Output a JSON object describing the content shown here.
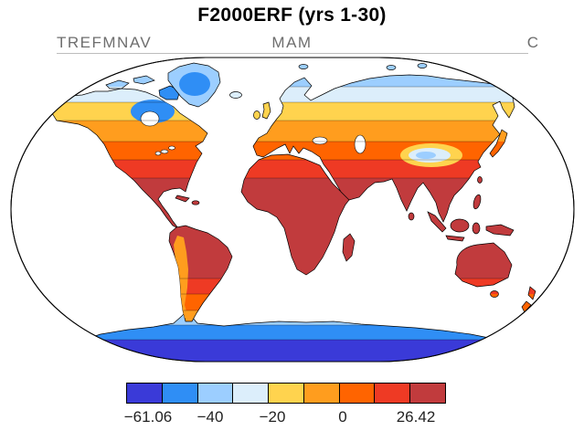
{
  "title": "F2000ERF (yrs 1-30)",
  "header": {
    "left": "TREFMNAV",
    "center": "MAM",
    "right": "C"
  },
  "chart_data": {
    "type": "heatmap",
    "title": "F2000ERF (yrs 1-30)",
    "variable": "TREFMNAV",
    "season": "MAM",
    "units": "C",
    "projection": "robinson-world-map",
    "ocean_masked": "white",
    "value_min": -61.06,
    "value_max": 26.42,
    "contour_levels": [
      -50,
      -40,
      -30,
      -20,
      -10,
      0,
      10,
      20
    ],
    "palette": [
      "#3A3AD8",
      "#2F8EF5",
      "#9CCEFF",
      "#DCEEFB",
      "#FFD34E",
      "#FF9D1E",
      "#FF6400",
      "#EE3A24",
      "#C13B3D"
    ],
    "colorbar_tick_labels": [
      "−61.06",
      "−40",
      "−20",
      "0",
      "26.42"
    ]
  },
  "colorbar": {
    "colors": [
      "#3A3AD8",
      "#2F8EF5",
      "#9CCEFF",
      "#DCEEFB",
      "#FFD34E",
      "#FF9D1E",
      "#FF6400",
      "#EE3A24",
      "#C13B3D"
    ],
    "labels": [
      "−61.06",
      "−40",
      "−20",
      "0",
      "26.42"
    ]
  },
  "map": {
    "ocean": "#FFFFFF",
    "coastline": "#000000",
    "land_bands": [
      {
        "from": 0,
        "to": 0.096,
        "color": "#9CCEFF"
      },
      {
        "from": 0.096,
        "to": 0.147,
        "color": "#DCEEFB"
      },
      {
        "from": 0.147,
        "to": 0.207,
        "color": "#FFD34E"
      },
      {
        "from": 0.207,
        "to": 0.276,
        "color": "#FF9D1E"
      },
      {
        "from": 0.276,
        "to": 0.336,
        "color": "#FF6400"
      },
      {
        "from": 0.336,
        "to": 0.396,
        "color": "#EE3A24"
      },
      {
        "from": 0.396,
        "to": 0.727,
        "color": "#C13B3D"
      },
      {
        "from": 0.727,
        "to": 0.778,
        "color": "#EE3A24"
      },
      {
        "from": 0.778,
        "to": 0.832,
        "color": "#FF6400"
      },
      {
        "from": 0.832,
        "to": 1,
        "color": "#FF9D1E"
      }
    ],
    "antarctica_bands": [
      {
        "from": 0,
        "to": 0.28,
        "color": "#9CCEFF"
      },
      {
        "from": 0.28,
        "to": 0.56,
        "color": "#2F8EF5"
      },
      {
        "from": 0.56,
        "to": 1,
        "color": "#3A3AD8"
      }
    ],
    "colors": {
      "greenland_base": "#9CCEFF",
      "greenland_core": "#2F8EF5",
      "baffin": "#2F8EF5",
      "hudson_region": "#2F8EF5",
      "water": "#FFFFFF",
      "tibet_ring": "#FFD34E",
      "tibet_mid": "#DCEEFB",
      "tibet_core": "#9CCEFF",
      "andes": "#FF9D1E"
    }
  }
}
